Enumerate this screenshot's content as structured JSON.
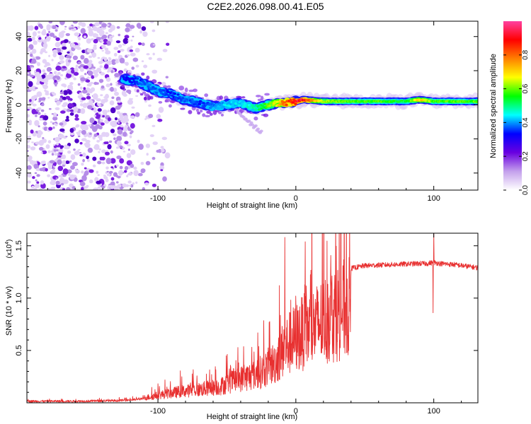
{
  "title": "C2E2.2026.098.00.41.E05",
  "chart_data": [
    {
      "type": "heatmap",
      "title": "C2E2.2026.098.00.41.E05",
      "xlabel": "Height of straight line (km)",
      "ylabel": "Frequency (Hz)",
      "xlim": [
        -195,
        132
      ],
      "ylim": [
        -50,
        49
      ],
      "xticks": [
        -100,
        0,
        100
      ],
      "xtick_labels": [
        "-100",
        "0",
        "100"
      ],
      "yticks": [
        -40,
        -20,
        0,
        20,
        40
      ],
      "ytick_labels": [
        "-40",
        "-20",
        "0",
        "20",
        "40"
      ],
      "ridge": {
        "name": "dominant frequency ridge",
        "x": [
          -125,
          -115,
          -110,
          -100,
          -90,
          -80,
          -70,
          -60,
          -50,
          -40,
          -30,
          -20,
          -10,
          0,
          5,
          20,
          40,
          60,
          80,
          90,
          100,
          130
        ],
        "y": [
          15,
          14,
          12,
          8,
          6,
          3,
          1,
          -1,
          0,
          1,
          -2,
          0,
          1,
          2,
          3,
          2,
          2,
          2,
          2,
          3,
          2,
          2
        ],
        "amplitude": [
          0.35,
          0.35,
          0.4,
          0.4,
          0.35,
          0.4,
          0.35,
          0.4,
          0.45,
          0.45,
          0.5,
          0.6,
          0.8,
          0.95,
          0.95,
          0.65,
          0.6,
          0.6,
          0.55,
          0.75,
          0.6,
          0.6
        ]
      },
      "noise_region_x": [
        -195,
        -118
      ],
      "colorbar": {
        "label": "Normalized spectral amplitude",
        "ticks": [
          0.0,
          0.2,
          0.4,
          0.6,
          0.8
        ],
        "tick_labels": [
          "0.0",
          "0.2",
          "0.4",
          "0.6",
          "0.8"
        ],
        "range": [
          0,
          1
        ],
        "colors": [
          "#ffffff",
          "#c4a0ec",
          "#6a00e0",
          "#0000ff",
          "#00ffff",
          "#00ff00",
          "#ffff00",
          "#ff8000",
          "#ff0000",
          "#ff40a0"
        ]
      }
    },
    {
      "type": "line",
      "xlabel": "Height of straight line (km)",
      "ylabel": "SNR (10 * v/v)",
      "yscale_label": "(x10",
      "yscale_exp": "4",
      "yscale_close": ")",
      "xlim": [
        -195,
        132
      ],
      "ylim": [
        0,
        1.62
      ],
      "xticks": [
        -100,
        0,
        100
      ],
      "xtick_labels": [
        "-100",
        "0",
        "100"
      ],
      "yticks": [
        0.5,
        1.0,
        1.5
      ],
      "ytick_labels": [
        "0.5",
        "1.0",
        "1.5"
      ],
      "series": [
        {
          "name": "SNR",
          "color": "#e83030",
          "envelope_x": [
            -195,
            -160,
            -130,
            -115,
            -100,
            -85,
            -70,
            -55,
            -45,
            -35,
            -25,
            -15,
            -8,
            -2,
            5,
            15,
            25,
            35,
            50,
            70,
            90,
            95,
            100,
            105,
            115,
            132
          ],
          "envelope_y": [
            0.02,
            0.02,
            0.03,
            0.05,
            0.1,
            0.15,
            0.18,
            0.22,
            0.3,
            0.35,
            0.42,
            0.55,
            0.75,
            0.85,
            0.95,
            1.05,
            1.18,
            1.27,
            1.31,
            1.32,
            1.33,
            1.33,
            1.34,
            1.33,
            1.32,
            1.29
          ],
          "spikes": [
            {
              "x": -8,
              "y": 1.58
            },
            {
              "x": -12,
              "y": 1.12
            },
            {
              "x": 0,
              "y": 1.02
            },
            {
              "x": 100,
              "y": 1.62
            },
            {
              "x": 99.5,
              "y": 0.86
            }
          ]
        }
      ]
    }
  ]
}
